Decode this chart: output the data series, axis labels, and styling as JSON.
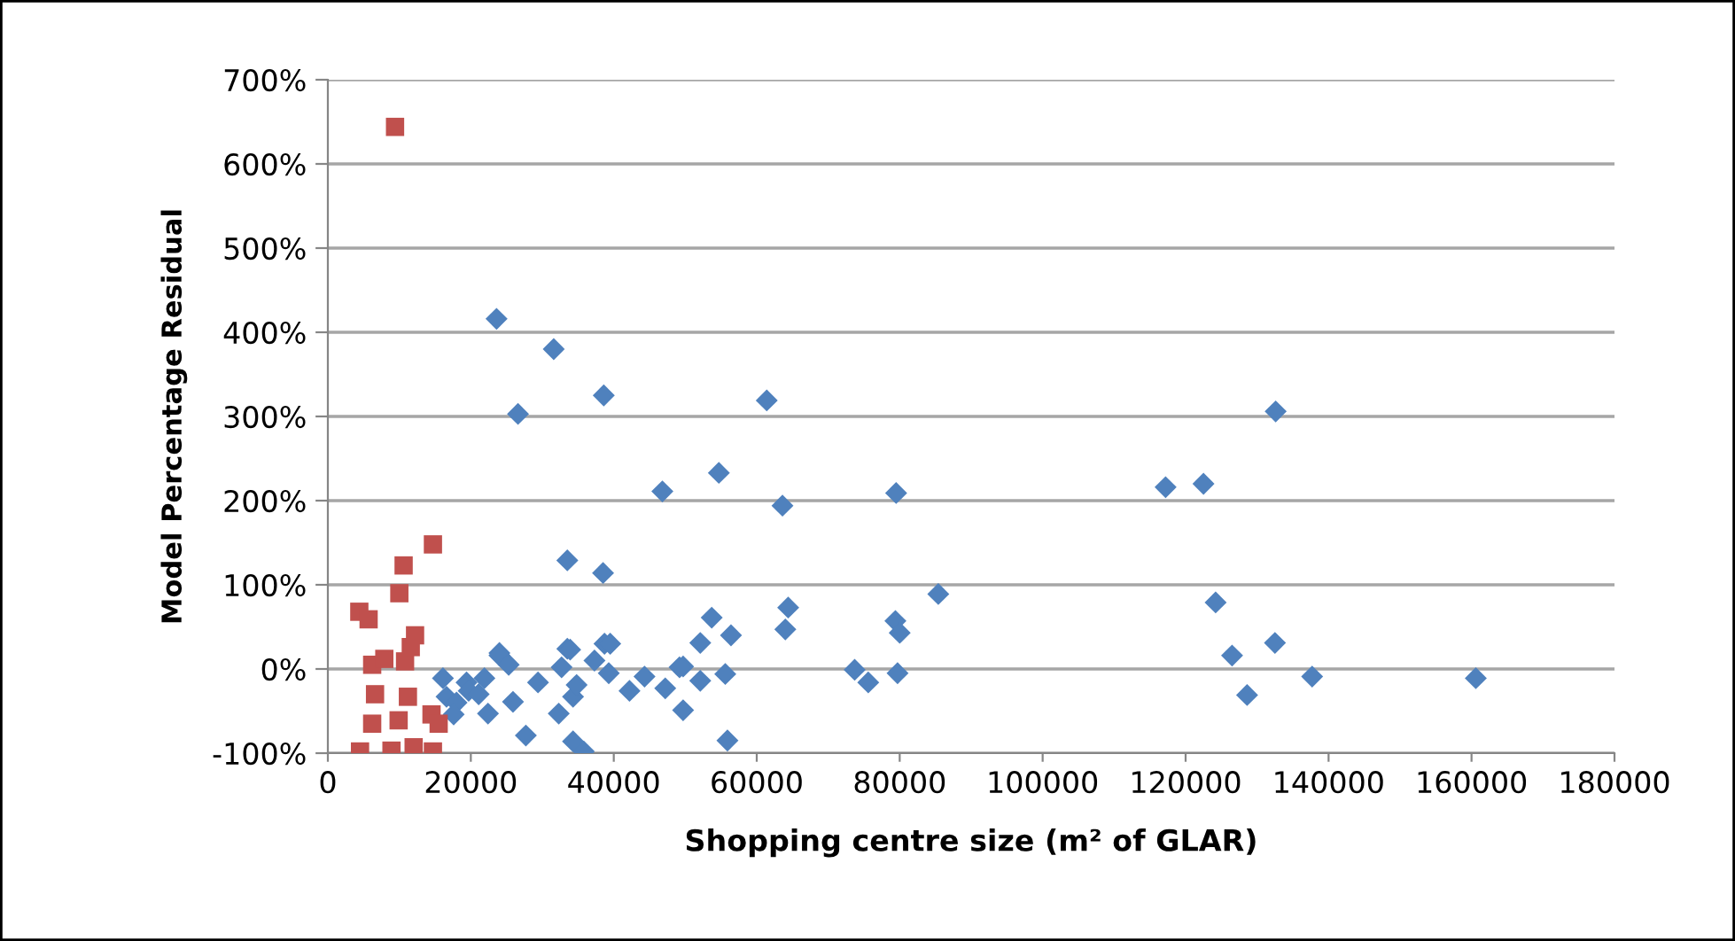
{
  "chart_data": {
    "type": "scatter",
    "xlabel": "Shopping centre size (m² of GLAR)",
    "ylabel": "Model Percentage Residual",
    "xlim": [
      0,
      180000
    ],
    "xticks": [
      0,
      20000,
      40000,
      60000,
      80000,
      100000,
      120000,
      140000,
      160000,
      180000
    ],
    "ylim": [
      -100,
      700
    ],
    "yticks": [
      {
        "value": -100,
        "label": "-100%"
      },
      {
        "value": 0,
        "label": "0%"
      },
      {
        "value": 100,
        "label": "100%"
      },
      {
        "value": 200,
        "label": "200%"
      },
      {
        "value": 300,
        "label": "300%"
      },
      {
        "value": 400,
        "label": "400%"
      },
      {
        "value": 500,
        "label": "500%"
      },
      {
        "value": 600,
        "label": "600%"
      },
      {
        "value": 700,
        "label": "700%"
      }
    ],
    "grid": "y",
    "legend": false,
    "series": [
      {
        "color": "#4f81bd",
        "marker": "diamond",
        "x": [
          23600,
          31600,
          38600,
          26600,
          61400,
          46800,
          54700,
          63600,
          33500,
          38500,
          53700,
          56400,
          64400,
          64000,
          52100,
          24000,
          33500,
          38700,
          39500,
          132600,
          79500,
          117200,
          122500,
          85400,
          79400,
          80000,
          124200,
          132500,
          126500,
          128600,
          137700,
          160600,
          49700,
          73700,
          75600,
          79700,
          55600,
          52100,
          49700,
          55900,
          16100,
          16600,
          18000,
          19400,
          19700,
          21100,
          21900,
          17600,
          22400,
          24000,
          25300,
          25900,
          27700,
          29400,
          32300,
          32700,
          33900,
          34300,
          34800,
          34300,
          35800,
          37300,
          39300,
          42200,
          44300,
          47200,
          49200
        ],
        "values": [
          416,
          380,
          325,
          303,
          319,
          211,
          233,
          194,
          129,
          114,
          61,
          40,
          73,
          47,
          31,
          19,
          24,
          30,
          30,
          306,
          209,
          216,
          220,
          89,
          57,
          43,
          79,
          31,
          16,
          -31,
          -9,
          -11,
          3,
          -1,
          -16,
          -5,
          -6,
          -14,
          -49,
          -85,
          -11,
          -33,
          -40,
          -16,
          -26,
          -30,
          -11,
          -54,
          -53,
          16,
          5,
          -39,
          -79,
          -16,
          -53,
          2,
          23,
          -33,
          -19,
          -86,
          -98,
          10,
          -5,
          -26,
          -9,
          -23,
          2
        ]
      },
      {
        "color": "#c0504d",
        "marker": "square",
        "x": [
          6200,
          7900,
          10800,
          11600,
          6600,
          11200,
          6200,
          9900,
          14500,
          15500,
          4500,
          8900,
          12000,
          14700,
          9400,
          14700,
          10600,
          10000,
          4400,
          5700,
          12200
        ],
        "values": [
          5,
          12,
          9,
          26,
          -30,
          -33,
          -65,
          -61,
          -54,
          -65,
          -98,
          -97,
          -93,
          -98,
          644,
          148,
          123,
          90,
          68,
          59,
          40
        ]
      }
    ]
  }
}
